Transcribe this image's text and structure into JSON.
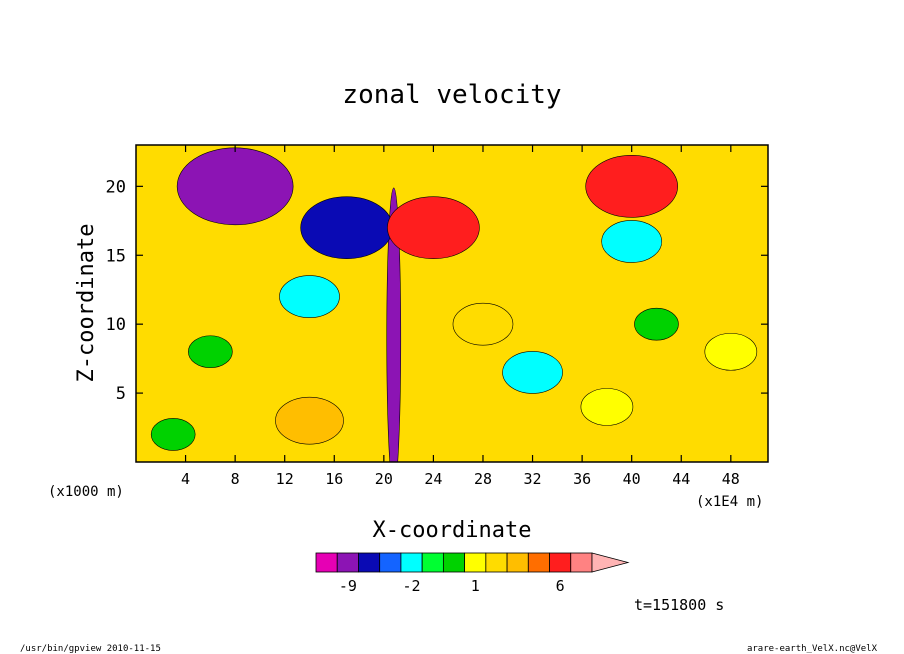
{
  "chart_data": {
    "type": "heatmap",
    "title": "zonal velocity",
    "xlabel": "X-coordinate",
    "ylabel": "Z-coordinate",
    "x_unit": "(x1E4 m)",
    "y_unit": "(x1000 m)",
    "xlim": [
      0,
      51
    ],
    "ylim": [
      0,
      23
    ],
    "x_ticks": [
      4,
      8,
      12,
      16,
      20,
      24,
      28,
      32,
      36,
      40,
      44,
      48
    ],
    "y_ticks": [
      5,
      10,
      15,
      20
    ],
    "colorbar": {
      "levels": [
        -12,
        -9,
        -6,
        -3,
        -2,
        -1,
        0,
        1,
        2,
        3,
        4,
        6,
        9,
        12
      ],
      "colors": [
        "#e600b4",
        "#8c14b4",
        "#0a0ab4",
        "#1464ff",
        "#00ffff",
        "#00ff32",
        "#00d200",
        "#ffff00",
        "#ffdc00",
        "#ffbe00",
        "#ff6e00",
        "#ff1e1e",
        "#ff8282",
        "#ffb4b4"
      ],
      "tick_labels": [
        "-9",
        "-2",
        "1",
        "6"
      ],
      "tick_levels": [
        -9,
        -2,
        1,
        6
      ]
    },
    "time_label": "t=151800 s",
    "field_features": [
      {
        "x": 20.8,
        "z": 9.0,
        "value": -9,
        "note": "narrow vertical jet along ridge"
      },
      {
        "x": 8.0,
        "z": 20.0,
        "value": -9
      },
      {
        "x": 17.0,
        "z": 17.0,
        "value": -6
      },
      {
        "x": 24.0,
        "z": 17.0,
        "value": 6
      },
      {
        "x": 40.0,
        "z": 20.0,
        "value": 6
      },
      {
        "x": 14.0,
        "z": 12.0,
        "value": -2
      },
      {
        "x": 32.0,
        "z": 6.5,
        "value": -2
      },
      {
        "x": 40.0,
        "z": 16.0,
        "value": -2
      },
      {
        "x": 42.0,
        "z": 10.0,
        "value": 0
      },
      {
        "x": 6.0,
        "z": 8.0,
        "value": 0
      },
      {
        "x": 3.0,
        "z": 2.0,
        "value": 0
      },
      {
        "x": 48.0,
        "z": 8.0,
        "value": 1
      },
      {
        "x": 14.0,
        "z": 3.0,
        "value": 3
      },
      {
        "x": 28.0,
        "z": 10.0,
        "value": 2
      },
      {
        "x": 38.0,
        "z": 4.0,
        "value": 1
      }
    ]
  },
  "footer": {
    "left": "/usr/bin/gpview  2010-11-15",
    "right": "arare-earth_VelX.nc@VelX"
  }
}
